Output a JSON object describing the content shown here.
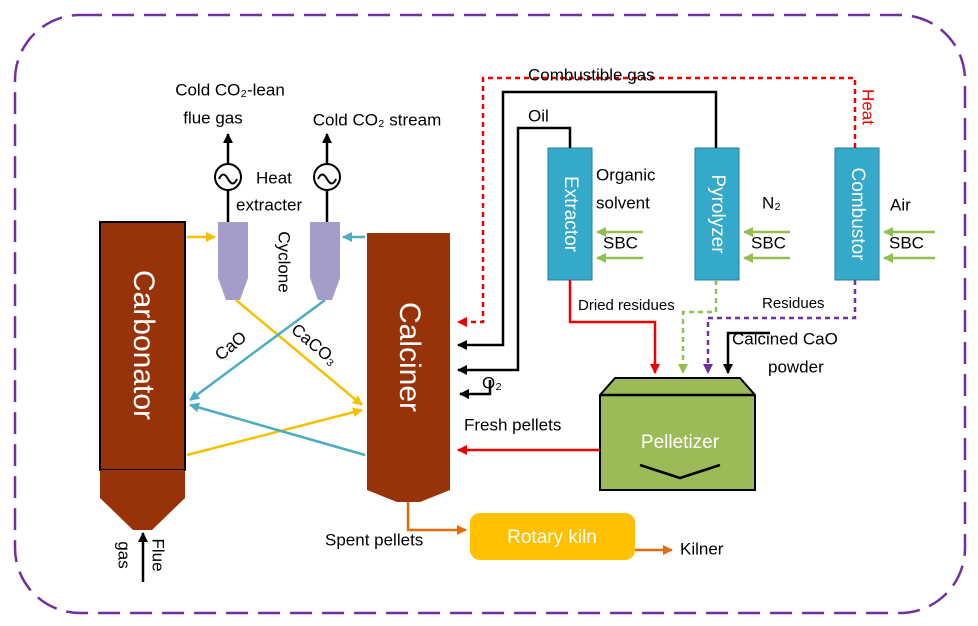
{
  "labels": {
    "cold_lean_1": "Cold CO₂-lean",
    "cold_lean_2": "flue gas",
    "cold_stream": "Cold CO₂ stream",
    "heat_extracter_1": "Heat",
    "heat_extracter_2": "extracter",
    "cyclone": "Cyclone",
    "carbonator": "Carbonator",
    "calciner": "Calciner",
    "cao": "CaO",
    "caco3": "CaCO₃",
    "flue_1": "Flue",
    "flue_2": "gas",
    "combustible_gas": "Combustible gas",
    "oil": "Oil",
    "extractor": "Extractor",
    "pyrolyzer": "Pyrolyzer",
    "combustor": "Combustor",
    "organic_1": "Organic",
    "organic_2": "solvent",
    "sbc_1": "SBC",
    "sbc_2": "SBC",
    "sbc_3": "SBC",
    "n2": "N₂",
    "air": "Air",
    "heat": "Heat",
    "dried_residues": "Dried residues",
    "residues": "Residues",
    "calcined_1": "Calcined CaO",
    "calcined_2": "powder",
    "o2": "O₂",
    "fresh_pellets": "Fresh pellets",
    "pelletizer": "Pelletizer",
    "spent_pellets": "Spent pellets",
    "rotary_kiln": "Rotary kiln",
    "kilner": "Kilner"
  }
}
